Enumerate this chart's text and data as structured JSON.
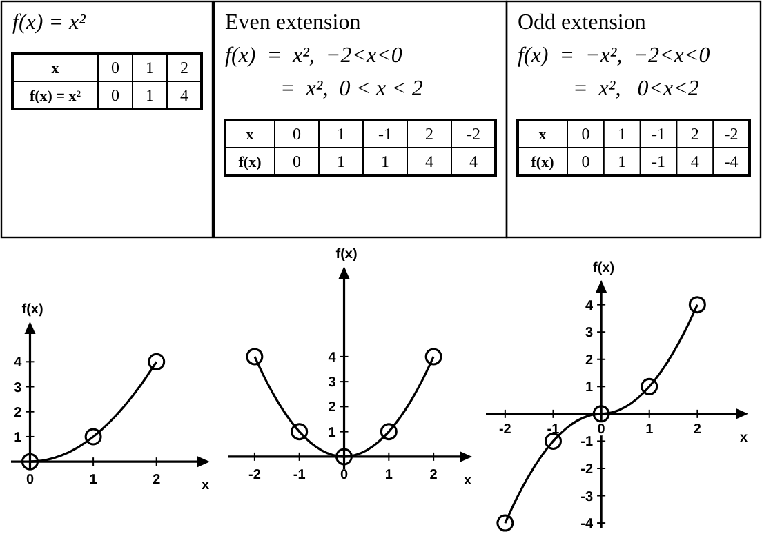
{
  "chart_data": [
    {
      "type": "other",
      "title": "f(x) = x²",
      "annotations": [
        "x",
        "0",
        "1",
        "2",
        "f(x) = x²",
        "0",
        "1",
        "4"
      ]
    },
    {
      "type": "other",
      "title": "Even extension",
      "annotations": [
        "f(x)  =  x²,  −2<x<0",
        "=  x²,  0 < x < 2",
        "x",
        "0",
        "1",
        "-1",
        "2",
        "-2",
        "f(x)",
        "0",
        "1",
        "1",
        "4",
        "4"
      ]
    },
    {
      "type": "other",
      "title": "Odd extension",
      "annotations": [
        "f(x)  =  −x²,  −2<x<0",
        "=  x²,   0<x<2",
        "x",
        "0",
        "1",
        "-1",
        "2",
        "-2",
        "f(x)",
        "0",
        "1",
        "-1",
        "4",
        "-4"
      ]
    },
    {
      "type": "line",
      "xlabel": "x",
      "ylabel": "f(x)",
      "xlim": [
        -0.3,
        2.8
      ],
      "ylim": [
        -0.3,
        5.5
      ],
      "xticks": [
        0,
        1,
        2
      ],
      "yticks": [
        1,
        2,
        3,
        4
      ],
      "series": [
        {
          "type": "line",
          "color": "#000000",
          "marker": "none",
          "x": [
            0,
            0.25,
            0.5,
            0.75,
            1,
            1.25,
            1.5,
            1.75,
            2
          ],
          "values": [
            0,
            0.0625,
            0.25,
            0.5625,
            1,
            1.5625,
            2.25,
            3.0625,
            4
          ]
        },
        {
          "type": "scatter",
          "marker": "circle",
          "color": "#000000",
          "x": [
            0,
            1,
            2
          ],
          "values": [
            0,
            1,
            4
          ]
        }
      ]
    },
    {
      "type": "line",
      "xlabel": "x",
      "ylabel": "f(x)",
      "xlim": [
        -2.6,
        2.8
      ],
      "ylim": [
        -0.5,
        7.5
      ],
      "xticks": [
        -2,
        -1,
        0,
        1,
        2
      ],
      "yticks": [
        1,
        2,
        3,
        4
      ],
      "series": [
        {
          "type": "line",
          "color": "#000000",
          "marker": "none",
          "x": [
            -2,
            -1.75,
            -1.5,
            -1.25,
            -1,
            -0.75,
            -0.5,
            -0.25,
            0,
            0.25,
            0.5,
            0.75,
            1,
            1.25,
            1.5,
            1.75,
            2
          ],
          "values": [
            4,
            3.0625,
            2.25,
            1.5625,
            1,
            0.5625,
            0.25,
            0.0625,
            0,
            0.0625,
            0.25,
            0.5625,
            1,
            1.5625,
            2.25,
            3.0625,
            4
          ]
        },
        {
          "type": "scatter",
          "marker": "circle",
          "color": "#000000",
          "x": [
            0,
            1,
            -1,
            2,
            -2
          ],
          "values": [
            0,
            1,
            1,
            4,
            4
          ]
        }
      ]
    },
    {
      "type": "line",
      "xlabel": "x",
      "ylabel": "f(x)",
      "xlim": [
        -2.4,
        3.0
      ],
      "ylim": [
        -4.2,
        4.8
      ],
      "xticks": [
        -2,
        -1,
        0,
        1,
        2
      ],
      "yticks": [
        -4,
        -3,
        -2,
        -1,
        1,
        2,
        3,
        4
      ],
      "series": [
        {
          "type": "line",
          "color": "#000000",
          "marker": "none",
          "x": [
            -2,
            -1.75,
            -1.5,
            -1.25,
            -1,
            -0.75,
            -0.5,
            -0.25,
            0,
            0.25,
            0.5,
            0.75,
            1,
            1.25,
            1.5,
            1.75,
            2
          ],
          "values": [
            -4,
            -3.0625,
            -2.25,
            -1.5625,
            -1,
            -0.5625,
            -0.25,
            -0.0625,
            0,
            0.0625,
            0.25,
            0.5625,
            1,
            1.5625,
            2.25,
            3.0625,
            4
          ]
        },
        {
          "type": "scatter",
          "marker": "circle",
          "color": "#000000",
          "x": [
            0,
            1,
            -1,
            2,
            -2
          ],
          "values": [
            0,
            1,
            -1,
            4,
            -4
          ]
        }
      ]
    }
  ]
}
